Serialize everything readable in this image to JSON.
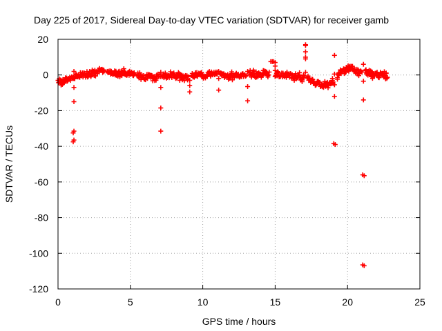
{
  "chart_data": {
    "type": "scatter",
    "title": "Day 225 of 2017, Sidereal Day-to-day VTEC variation (SDTVAR) for receiver gamb",
    "xlabel": "GPS time / hours",
    "ylabel": "SDTVAR / TECUs",
    "xlim": [
      0,
      25
    ],
    "ylim": [
      -120,
      20
    ],
    "xticks": [
      0,
      5,
      10,
      15,
      20,
      25
    ],
    "yticks": [
      -120,
      -100,
      -80,
      -60,
      -40,
      -20,
      0,
      20
    ],
    "xtick_labels": [
      "0",
      "5",
      "10",
      "15",
      "20",
      "25"
    ],
    "ytick_labels": [
      "-120",
      "-100",
      "-80",
      "-60",
      "-40",
      "-20",
      "0",
      "20"
    ],
    "grid": true,
    "marker": "+",
    "color": "#ff0000",
    "trend": [
      [
        0.0,
        -3
      ],
      [
        0.3,
        -4
      ],
      [
        0.6,
        -2.5
      ],
      [
        0.9,
        -1.5
      ],
      [
        1.2,
        -1
      ],
      [
        1.5,
        0
      ],
      [
        2.0,
        1
      ],
      [
        2.5,
        1.5
      ],
      [
        3.0,
        2
      ],
      [
        3.3,
        1
      ],
      [
        3.5,
        1.5
      ],
      [
        4.0,
        1
      ],
      [
        4.5,
        1
      ],
      [
        5.0,
        0.8
      ],
      [
        5.3,
        0.5
      ],
      [
        5.6,
        0
      ],
      [
        6.0,
        -1
      ],
      [
        6.5,
        -1
      ],
      [
        7.0,
        -0.5
      ],
      [
        7.5,
        0
      ],
      [
        8.0,
        -0.5
      ],
      [
        8.5,
        -0.5
      ],
      [
        9.0,
        -1
      ],
      [
        9.5,
        0
      ],
      [
        10.0,
        0
      ],
      [
        10.5,
        0.5
      ],
      [
        11.0,
        0.3
      ],
      [
        11.5,
        -0.5
      ],
      [
        12.0,
        -0.5
      ],
      [
        12.5,
        0
      ],
      [
        13.0,
        0.2
      ],
      [
        13.5,
        0.5
      ],
      [
        14.0,
        0.5
      ],
      [
        14.5,
        0.5
      ],
      [
        15.0,
        0.5
      ],
      [
        15.5,
        0
      ],
      [
        16.0,
        -0.5
      ],
      [
        16.5,
        -1
      ],
      [
        17.0,
        -2
      ],
      [
        17.5,
        -3
      ],
      [
        18.0,
        -5
      ],
      [
        18.3,
        -6
      ],
      [
        18.7,
        -5
      ],
      [
        19.0,
        -3
      ],
      [
        19.3,
        -1
      ],
      [
        19.6,
        2
      ],
      [
        20.0,
        4
      ],
      [
        20.3,
        3.5
      ],
      [
        20.6,
        2
      ],
      [
        21.0,
        1.5
      ],
      [
        21.5,
        1
      ],
      [
        22.0,
        0.5
      ],
      [
        22.5,
        0
      ],
      [
        22.8,
        -0.5
      ]
    ],
    "trend_spread": 1.4,
    "outliers": [
      [
        1.1,
        2
      ],
      [
        1.1,
        -7
      ],
      [
        1.1,
        -15
      ],
      [
        1.1,
        -31.5
      ],
      [
        1.05,
        -32.5
      ],
      [
        1.1,
        -36.5
      ],
      [
        1.05,
        -37.5
      ],
      [
        7.1,
        1.5
      ],
      [
        7.1,
        -1
      ],
      [
        7.1,
        -7
      ],
      [
        7.1,
        -18.5
      ],
      [
        7.1,
        -31.5
      ],
      [
        9.1,
        -3
      ],
      [
        9.1,
        -6
      ],
      [
        9.1,
        -9.5
      ],
      [
        11.1,
        2
      ],
      [
        11.1,
        -2
      ],
      [
        11.1,
        -8.5
      ],
      [
        13.1,
        2
      ],
      [
        13.1,
        -6.5
      ],
      [
        13.1,
        -14.5
      ],
      [
        14.7,
        7.5
      ],
      [
        14.8,
        7.5
      ],
      [
        14.9,
        7.5
      ],
      [
        15.0,
        7
      ],
      [
        15.0,
        5
      ],
      [
        15.0,
        2.5
      ],
      [
        17.1,
        17
      ],
      [
        17.1,
        16.5
      ],
      [
        17.1,
        13
      ],
      [
        17.1,
        10
      ],
      [
        17.1,
        9
      ],
      [
        17.1,
        1.5
      ],
      [
        19.1,
        11
      ],
      [
        19.1,
        0.5
      ],
      [
        19.1,
        -5.5
      ],
      [
        19.1,
        -12
      ],
      [
        19.05,
        -38.5
      ],
      [
        19.15,
        -39
      ],
      [
        21.1,
        6
      ],
      [
        21.1,
        -3.5
      ],
      [
        21.1,
        -14
      ],
      [
        21.05,
        -56
      ],
      [
        21.15,
        -56.5
      ],
      [
        21.05,
        -106.5
      ],
      [
        21.15,
        -107
      ]
    ]
  }
}
